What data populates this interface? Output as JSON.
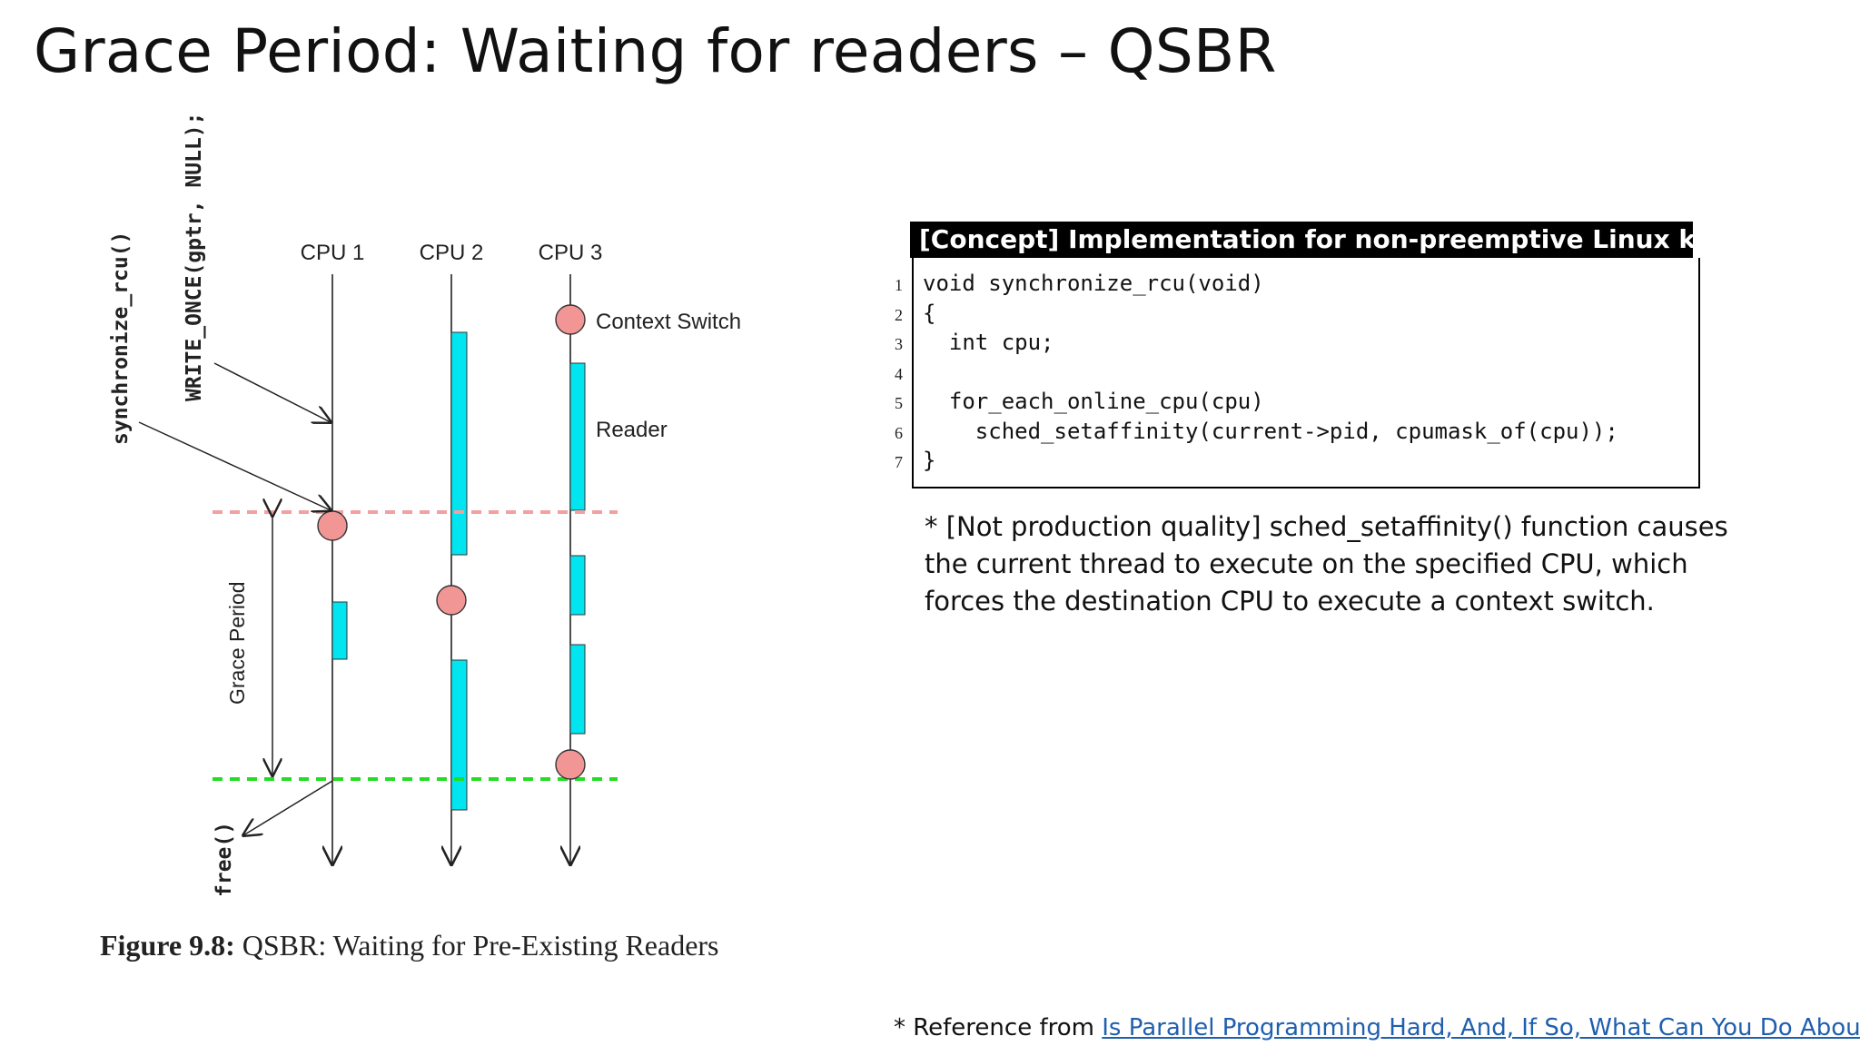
{
  "slide": {
    "title": "Grace Period: Waiting for readers – QSBR"
  },
  "figure": {
    "caption_label": "Figure 9.8:",
    "caption_text": "QSBR: Waiting for Pre-Existing Readers",
    "cpu_labels": [
      "CPU 1",
      "CPU 2",
      "CPU 3"
    ],
    "legend_context_switch": "Context Switch",
    "legend_reader": "Reader",
    "label_synchronize": "synchronize_rcu()",
    "label_write_once": "WRITE_ONCE(gptr, NULL);",
    "label_grace_period": "Grace Period",
    "label_free": "free()",
    "colors": {
      "reader": "#00e5f0",
      "context_switch": "#f29595",
      "grace_start_line": "#f2a0a0",
      "grace_end_line": "#22dd22"
    }
  },
  "concept": {
    "header": "[Concept] Implementation for non-preemptive Linux kernel",
    "line_numbers": [
      "1",
      "2",
      "3",
      "4",
      "5",
      "6",
      "7"
    ],
    "code_lines": [
      "void synchronize_rcu(void)",
      "{",
      "  int cpu;",
      "",
      "  for_each_online_cpu(cpu)",
      "    sched_setaffinity(current->pid, cpumask_of(cpu));",
      "}"
    ],
    "note": "* [Not production quality] sched_setaffinity() function causes the current thread to execute on the specified CPU, which forces the destination CPU to execute a context switch."
  },
  "reference": {
    "prefix": "* Reference from ",
    "link_text": "Is Parallel Programming Hard, And, If So, What Can You Do About It?"
  }
}
